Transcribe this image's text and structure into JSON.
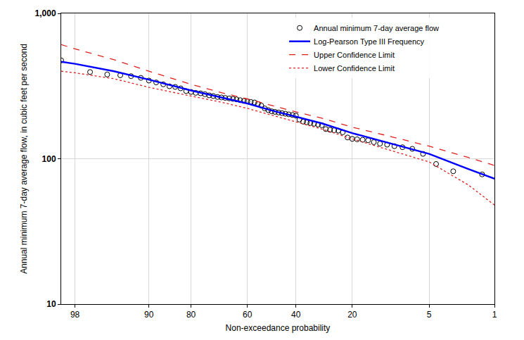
{
  "chart_data": {
    "type": "scatter",
    "x_label": "Non-exceedance probability",
    "y_label": "Annual minimum 7-day average flow, in cubic feet per second",
    "log": "y",
    "grid": true,
    "legend": "top right",
    "xlim": [
      98.6,
      1
    ],
    "xticks": [
      98,
      90,
      80,
      60,
      40,
      20,
      5,
      1
    ],
    "ylim": [
      10,
      1000
    ],
    "yticks": [
      10,
      100,
      {
        "value": 1000,
        "label": "1,000"
      }
    ],
    "series": [
      {
        "name": "Annual minimum 7-day average flow",
        "type": "scatter",
        "marker": "open circle",
        "color": "#000000",
        "x": [
          98.6,
          97.1,
          95.7,
          94.3,
          92.9,
          91.4,
          90.0,
          88.6,
          87.1,
          85.7,
          84.3,
          82.9,
          81.4,
          80.0,
          78.6,
          77.1,
          75.7,
          74.3,
          72.9,
          71.4,
          70.0,
          68.6,
          67.1,
          65.7,
          64.3,
          62.9,
          61.4,
          60.0,
          58.6,
          57.1,
          55.7,
          54.3,
          52.9,
          51.4,
          50.0,
          48.6,
          47.1,
          45.7,
          44.3,
          42.9,
          41.4,
          40.0,
          38.6,
          37.1,
          35.7,
          34.3,
          32.9,
          31.4,
          30.0,
          28.6,
          27.1,
          25.7,
          24.3,
          22.9,
          21.4,
          20.0,
          18.6,
          17.1,
          15.7,
          14.3,
          12.9,
          11.4,
          10.0,
          8.6,
          7.1,
          5.7,
          4.3,
          2.9,
          1.4
        ],
        "values": [
          475,
          395,
          380,
          375,
          370,
          360,
          345,
          335,
          325,
          315,
          312,
          305,
          292,
          288,
          284,
          282,
          278,
          273,
          270,
          266,
          264,
          262,
          260,
          258,
          256,
          253,
          250,
          248,
          246,
          244,
          238,
          232,
          222,
          216,
          212,
          210,
          208,
          206,
          204,
          202,
          200,
          198,
          186,
          180,
          178,
          176,
          174,
          172,
          170,
          160,
          158,
          157,
          156,
          152,
          140,
          137,
          136,
          135,
          134,
          130,
          127,
          125,
          122,
          120,
          117,
          108,
          92,
          82,
          78
        ]
      },
      {
        "name": "Log-Pearson Type III Frequency",
        "type": "line",
        "line_style": "solid",
        "color": "#0000ff",
        "x": [
          98.6,
          98,
          95,
          90,
          80,
          70,
          60,
          50,
          40,
          30,
          20,
          10,
          5,
          2,
          1
        ],
        "values": [
          465,
          450,
          400,
          350,
          295,
          265,
          240,
          215,
          195,
          175,
          150,
          125,
          108,
          85,
          73
        ]
      },
      {
        "name": "Upper Confidence Limit",
        "type": "line",
        "line_style": "dash",
        "color": "#e02020",
        "x": [
          98.6,
          98,
          95,
          90,
          80,
          70,
          60,
          50,
          40,
          30,
          20,
          10,
          5,
          2,
          1
        ],
        "values": [
          610,
          570,
          480,
          400,
          325,
          285,
          258,
          232,
          210,
          190,
          165,
          140,
          122,
          102,
          90
        ]
      },
      {
        "name": "Lower Confidence Limit",
        "type": "line",
        "line_style": "dot",
        "color": "#e02020",
        "x": [
          98.6,
          98,
          95,
          90,
          80,
          70,
          60,
          50,
          40,
          30,
          20,
          10,
          5,
          2,
          1
        ],
        "values": [
          400,
          390,
          355,
          310,
          270,
          245,
          222,
          200,
          180,
          160,
          137,
          112,
          95,
          66,
          48
        ]
      }
    ]
  }
}
